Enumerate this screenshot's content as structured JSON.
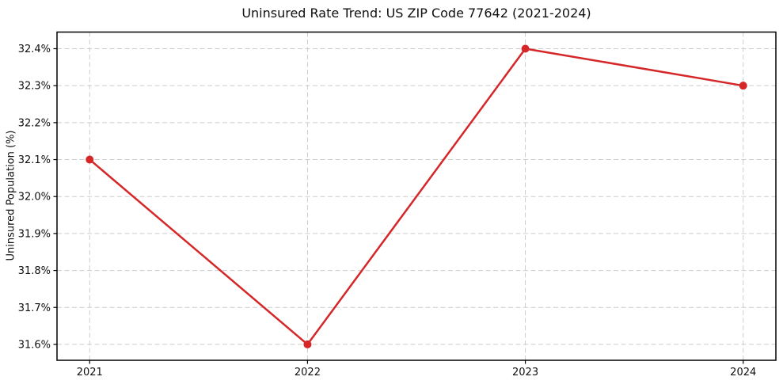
{
  "figure": {
    "background": "#ffffff"
  },
  "chart_data": {
    "type": "line",
    "title": "Uninsured Rate Trend: US ZIP Code 77642 (2021-2024)",
    "xlabel": "",
    "ylabel": "Uninsured Population (%)",
    "categories": [
      "2021",
      "2022",
      "2023",
      "2024"
    ],
    "values": [
      32.1,
      31.6,
      32.4,
      32.3
    ],
    "yticks": [
      31.6,
      31.7,
      31.8,
      31.9,
      32.0,
      32.1,
      32.2,
      32.3,
      32.4
    ],
    "ytick_labels": [
      "31.6%",
      "31.7%",
      "31.8%",
      "31.9%",
      "32.0%",
      "32.1%",
      "32.2%",
      "32.3%",
      "32.4%"
    ],
    "ylim": [
      31.557,
      32.445
    ],
    "x_margin": 0.15,
    "grid": true,
    "grid_color": "#cccccc",
    "grid_style": "dashed",
    "line_color": "#d62728",
    "marker": "circle",
    "marker_radius": 5,
    "line_width": 2.5,
    "legend_position": "none"
  }
}
